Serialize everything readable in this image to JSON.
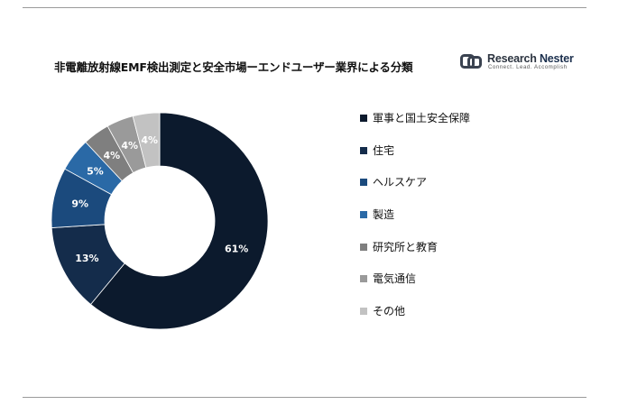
{
  "chart_data": {
    "type": "pie",
    "variant": "donut",
    "title": "非電離放射線EMF検出測定と安全市場ーエンドユーザー業界による分類",
    "categories": [
      "軍事と国土安全保障",
      "住宅",
      "ヘルスケア",
      "製造",
      "研究所と教育",
      "電気通信",
      "その他"
    ],
    "values": [
      61,
      13,
      9,
      5,
      4,
      4,
      4
    ],
    "data_labels": [
      "61%",
      "13%",
      "9%",
      "5%",
      "4%",
      "4%",
      "4%"
    ],
    "colors": [
      "#0c1a2d",
      "#142c4b",
      "#1b4a7d",
      "#2a69a6",
      "#7f7f7f",
      "#9a9a9a",
      "#c2c2c2"
    ],
    "legend_position": "right"
  },
  "brand": {
    "name_part1": "Research",
    "name_part2": "Nester",
    "tagline": "Connect. Lead. Accomplish"
  }
}
